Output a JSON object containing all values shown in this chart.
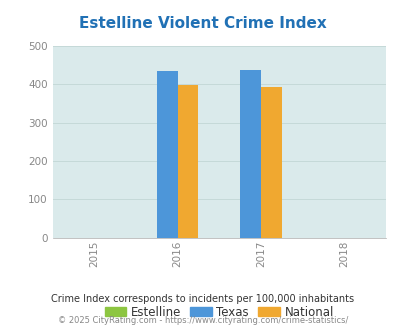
{
  "title": "Estelline Violent Crime Index",
  "title_color": "#2171b5",
  "title_fontsize": 11,
  "years": [
    2015,
    2016,
    2017,
    2018
  ],
  "bar_groups": [
    {
      "year": 2016,
      "estelline": 0,
      "texas": 435,
      "national": 398
    },
    {
      "year": 2017,
      "estelline": 0,
      "texas": 438,
      "national": 393
    }
  ],
  "bar_colors": {
    "estelline": "#8dc641",
    "texas": "#4d96d9",
    "national": "#f0a830"
  },
  "ylim": [
    0,
    500
  ],
  "yticks": [
    0,
    100,
    200,
    300,
    400,
    500
  ],
  "plot_bg_color": "#daeaeb",
  "figure_bg_color": "#ffffff",
  "grid_color": "#c5d9d8",
  "legend_labels": [
    "Estelline",
    "Texas",
    "National"
  ],
  "legend_colors_keys": [
    "estelline",
    "texas",
    "national"
  ],
  "footnote1": "Crime Index corresponds to incidents per 100,000 inhabitants",
  "footnote2": "© 2025 CityRating.com - https://www.cityrating.com/crime-statistics/",
  "footnote1_color": "#333333",
  "footnote2_color": "#888888",
  "bar_width": 0.25
}
